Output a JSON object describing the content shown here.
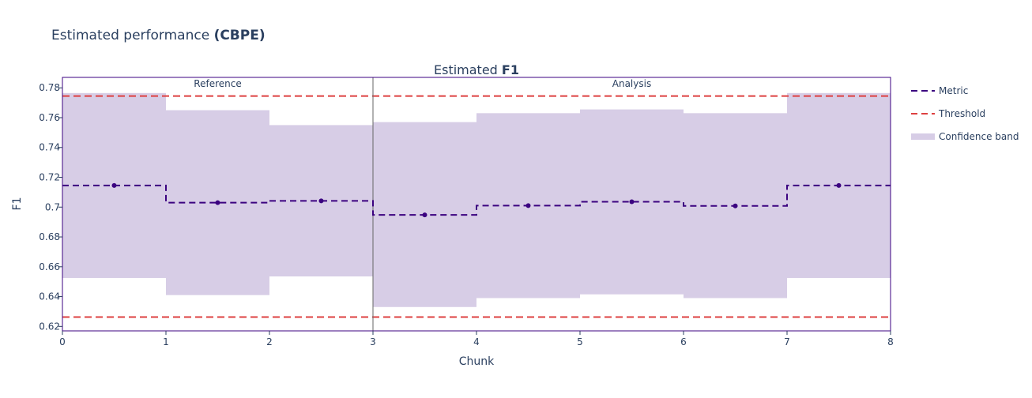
{
  "figure": {
    "title_prefix": "Estimated performance ",
    "title_bold": "(CBPE)"
  },
  "chart_data": {
    "type": "line",
    "title_prefix": "Estimated ",
    "title_bold": "F1",
    "xlabel": "Chunk",
    "ylabel": "F1",
    "xlim": [
      0,
      8
    ],
    "ylim": [
      0.617,
      0.787
    ],
    "xticks": [
      0,
      1,
      2,
      3,
      4,
      5,
      6,
      7,
      8
    ],
    "xtick_labels": [
      "0",
      "1",
      "2",
      "3",
      "4",
      "5",
      "6",
      "7",
      "8"
    ],
    "yticks": [
      0.62,
      0.64,
      0.66,
      0.68,
      0.7,
      0.72,
      0.74,
      0.76,
      0.78
    ],
    "ytick_labels": [
      "0.62",
      "0.64",
      "0.66",
      "0.68",
      "0.7",
      "0.72",
      "0.74",
      "0.76",
      "0.78"
    ],
    "grid": false,
    "legend_position": "right",
    "periods": [
      {
        "label": "Reference",
        "start": 0,
        "end": 3
      },
      {
        "label": "Analysis",
        "start": 3,
        "end": 8
      }
    ],
    "period_divider": 3,
    "chunks": [
      {
        "start": 0,
        "end": 1,
        "metric": 0.7145,
        "lower": 0.6525,
        "upper": 0.7765
      },
      {
        "start": 1,
        "end": 2,
        "metric": 0.703,
        "lower": 0.641,
        "upper": 0.765
      },
      {
        "start": 2,
        "end": 3,
        "metric": 0.7042,
        "lower": 0.6535,
        "upper": 0.755
      },
      {
        "start": 3,
        "end": 4,
        "metric": 0.6948,
        "lower": 0.633,
        "upper": 0.757
      },
      {
        "start": 4,
        "end": 5,
        "metric": 0.701,
        "lower": 0.639,
        "upper": 0.763
      },
      {
        "start": 5,
        "end": 6,
        "metric": 0.7036,
        "lower": 0.6415,
        "upper": 0.7655
      },
      {
        "start": 6,
        "end": 7,
        "metric": 0.7008,
        "lower": 0.639,
        "upper": 0.763
      },
      {
        "start": 7,
        "end": 8,
        "metric": 0.7145,
        "lower": 0.6525,
        "upper": 0.7765
      }
    ],
    "thresholds": {
      "upper": 0.7745,
      "lower": 0.6263
    },
    "legend": [
      {
        "key": "metric",
        "label": "Metric"
      },
      {
        "key": "threshold",
        "label": "Threshold"
      },
      {
        "key": "band",
        "label": "Confidence band"
      }
    ],
    "colors": {
      "metric": "#3b0280",
      "threshold": "#dd4040",
      "band": "#d7cde6",
      "plot_border": "#3b0280",
      "divider": "#666666",
      "text": "#2a3f5f"
    }
  }
}
